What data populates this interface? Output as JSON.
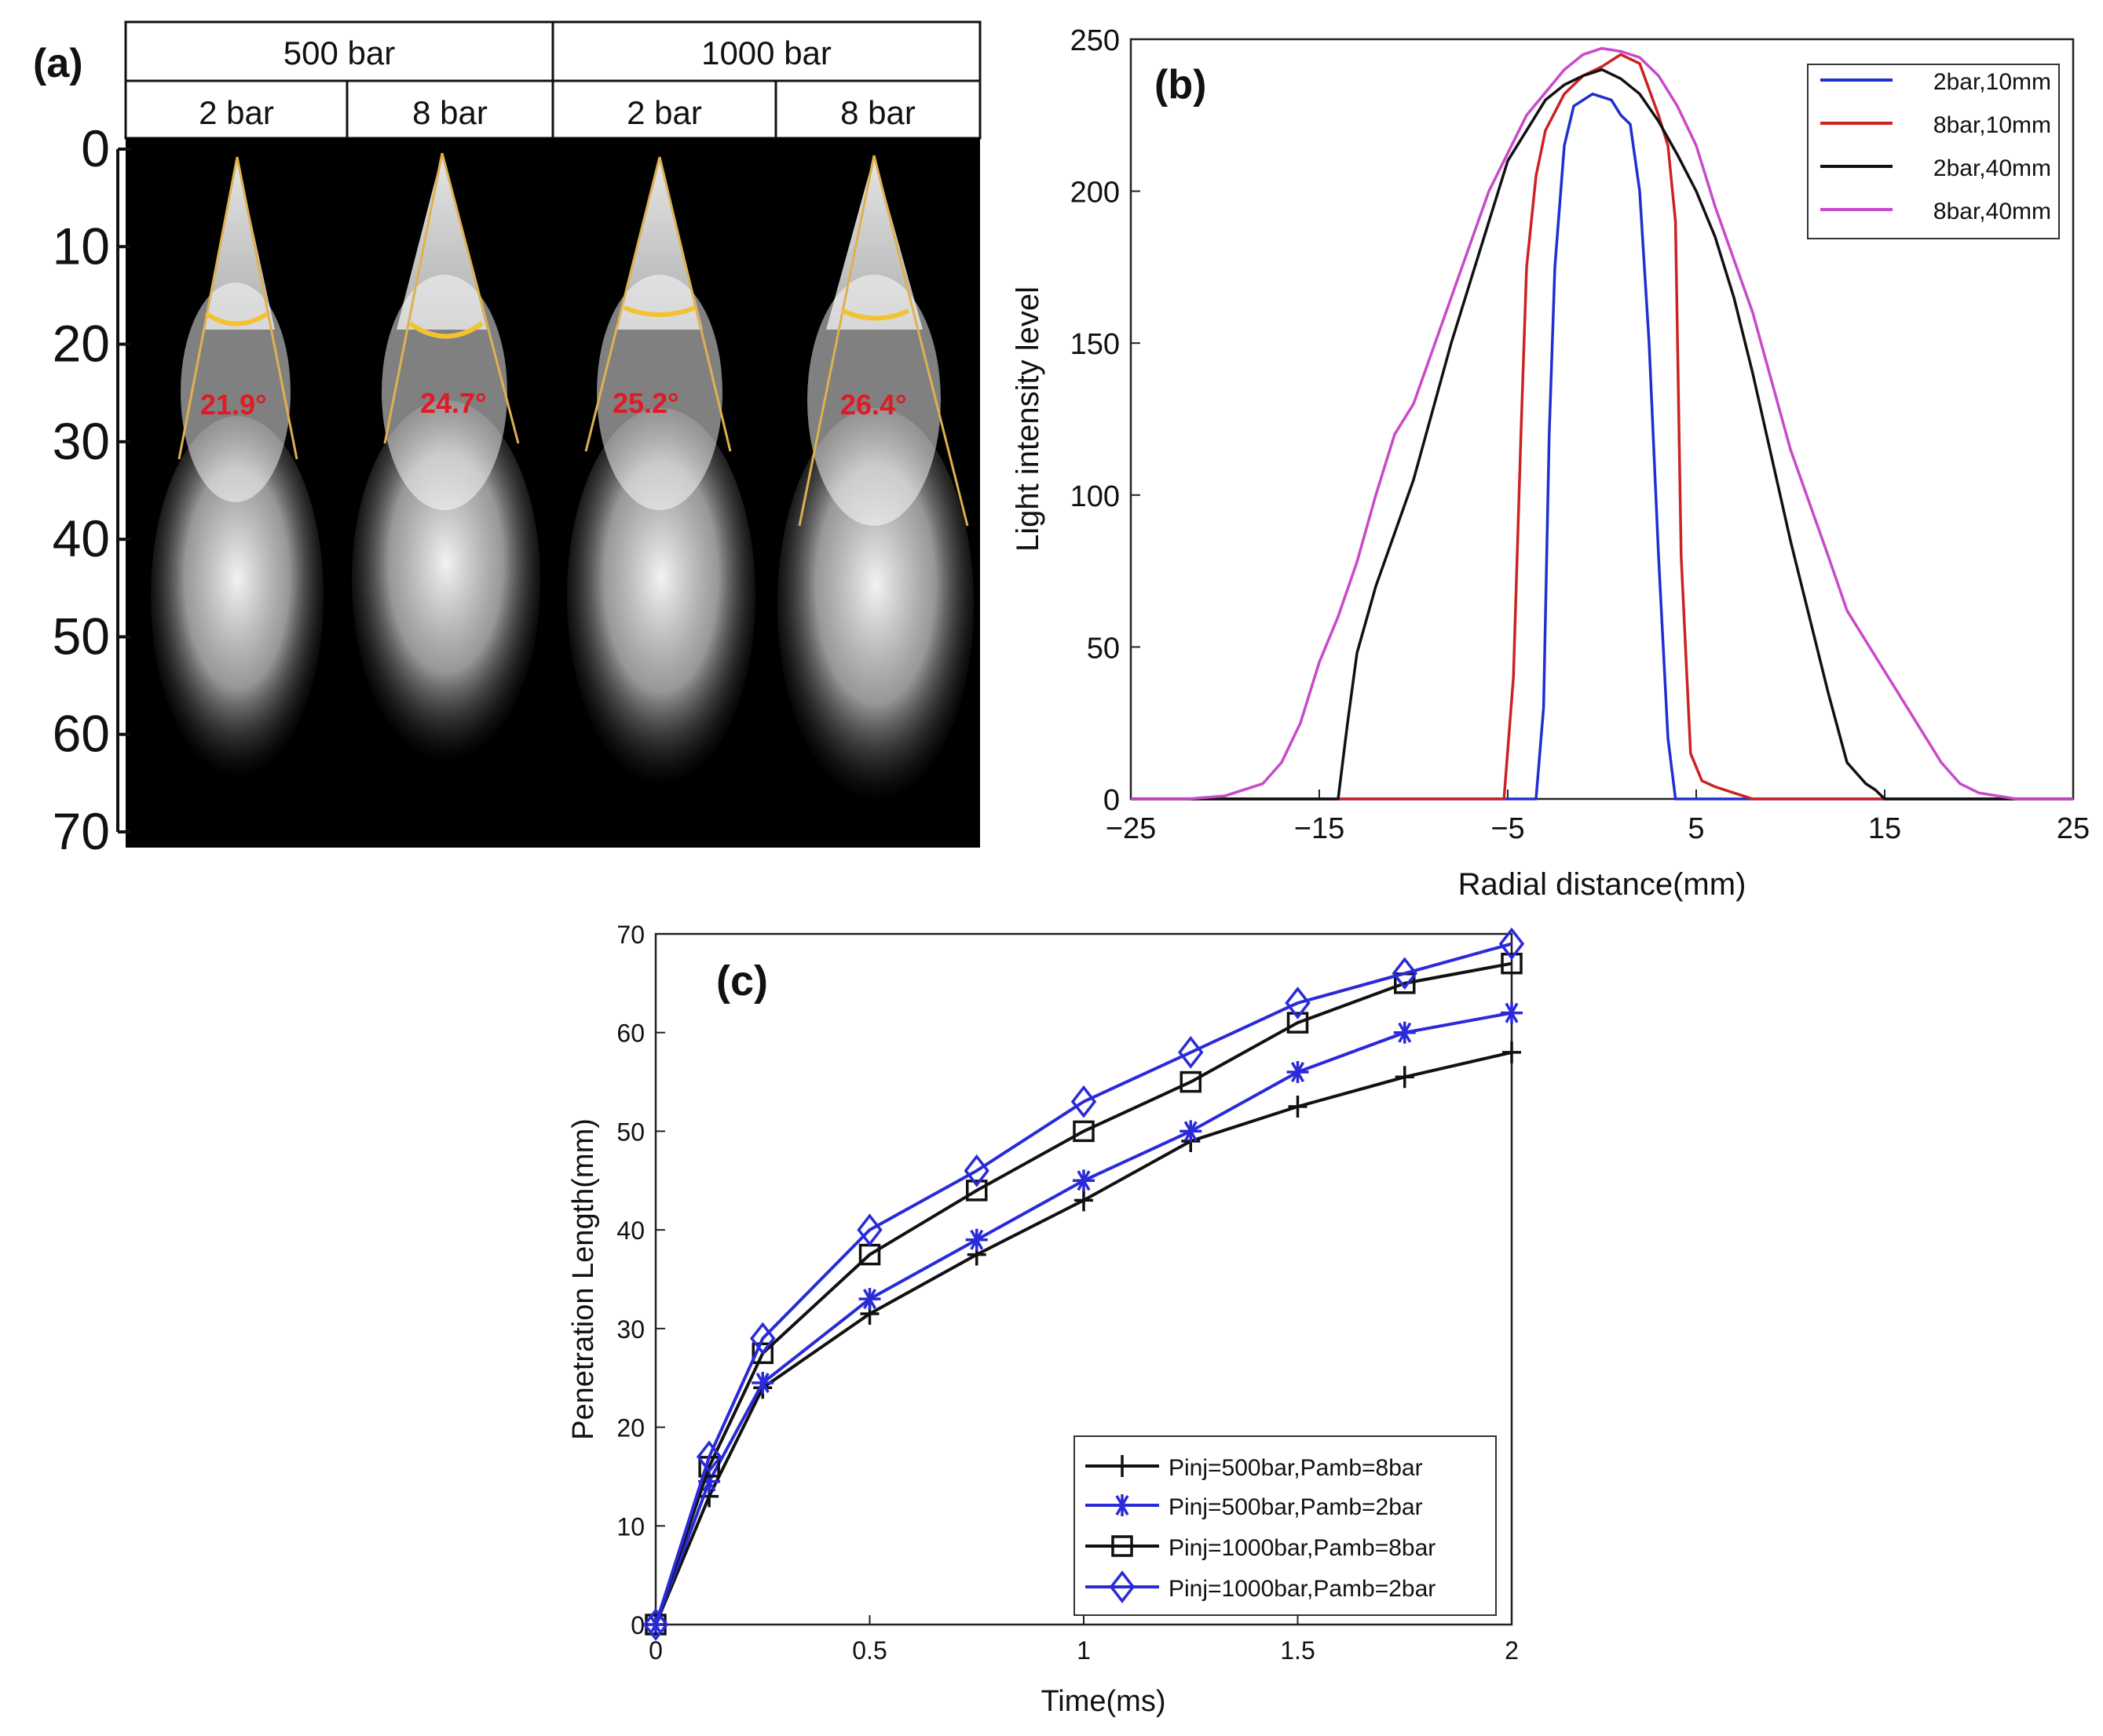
{
  "panel_a": {
    "label": "(a)",
    "header": {
      "groups": [
        {
          "label": "500 bar",
          "subs": [
            "2 bar",
            "8 bar"
          ]
        },
        {
          "label": "1000 bar",
          "subs": [
            "2 bar",
            "8 bar"
          ]
        }
      ]
    },
    "scale_ticks": [
      "0",
      "10",
      "20",
      "30",
      "40",
      "50",
      "60",
      "70"
    ],
    "scale_values": [
      0,
      10,
      20,
      30,
      40,
      50,
      60,
      70
    ],
    "angles": [
      "21.9°",
      "24.7°",
      "25.2°",
      "26.4°"
    ],
    "colors": {
      "angle_text": "#e01b24",
      "cone_line": "#e0b050",
      "arc": "#f2c230",
      "background": "#000000"
    }
  },
  "chart_data": [
    {
      "id": "b",
      "type": "line",
      "panel_label": "(b)",
      "title": "",
      "xlabel": "Radial distance(mm)",
      "ylabel": "Light intensity level",
      "xlim": [
        -25,
        25
      ],
      "ylim": [
        0,
        250
      ],
      "xticks": [
        -25,
        -15,
        -5,
        5,
        15,
        25
      ],
      "xtick_labels": [
        "−25",
        "−15",
        "−5",
        "5",
        "15",
        "25"
      ],
      "yticks": [
        0,
        50,
        100,
        150,
        200,
        250
      ],
      "ytick_labels": [
        "0",
        "50",
        "100",
        "150",
        "200",
        "250"
      ],
      "legend_position": "top-right",
      "series": [
        {
          "name": "2bar,10mm",
          "color": "#1f2fd0",
          "x": [
            -25,
            -3.5,
            -3.1,
            -2.8,
            -2.5,
            -2.0,
            -1.5,
            -0.5,
            0.5,
            1.0,
            1.5,
            2.0,
            2.5,
            3.0,
            3.5,
            3.9,
            4.2,
            25
          ],
          "y": [
            0,
            0,
            30,
            120,
            175,
            215,
            228,
            232,
            230,
            225,
            222,
            200,
            150,
            80,
            20,
            0,
            0,
            0
          ]
        },
        {
          "name": "8bar,10mm",
          "color": "#cc2222",
          "x": [
            -25,
            -5.2,
            -4.7,
            -4.3,
            -4.0,
            -3.5,
            -3.0,
            -2.0,
            -1.0,
            0.0,
            1.0,
            2.0,
            3.0,
            3.5,
            3.9,
            4.2,
            4.7,
            5.3,
            6.0,
            7.0,
            8.0,
            25
          ],
          "y": [
            0,
            0,
            40,
            120,
            175,
            205,
            220,
            232,
            238,
            241,
            245,
            242,
            225,
            215,
            190,
            80,
            15,
            6,
            4,
            2,
            0,
            0
          ]
        },
        {
          "name": "2bar,40mm",
          "color": "#111111",
          "x": [
            -25,
            -14.0,
            -13.5,
            -13.0,
            -12.0,
            -10.0,
            -8.0,
            -6.0,
            -5.0,
            -4.0,
            -3.0,
            -2.0,
            -1.0,
            0.0,
            1.0,
            2.0,
            3.0,
            4.0,
            5.0,
            6.0,
            7.0,
            8.0,
            10.0,
            12.0,
            13.0,
            14.0,
            14.5,
            15.0,
            25
          ],
          "y": [
            0,
            0,
            25,
            48,
            70,
            105,
            150,
            190,
            210,
            220,
            230,
            235,
            238,
            240,
            237,
            232,
            223,
            212,
            200,
            185,
            165,
            140,
            85,
            35,
            12,
            5,
            3,
            0,
            0
          ]
        },
        {
          "name": "8bar,40mm",
          "color": "#c84ac8",
          "x": [
            -25,
            -22,
            -20,
            -18,
            -17,
            -16,
            -15,
            -14,
            -13,
            -12,
            -11,
            -10,
            -8,
            -6,
            -4,
            -2,
            -1,
            0,
            1,
            2,
            3,
            4,
            5,
            6,
            8,
            10,
            12,
            13,
            15,
            16,
            17,
            18,
            19,
            20,
            22,
            25
          ],
          "y": [
            0,
            0,
            1,
            5,
            12,
            25,
            45,
            60,
            78,
            100,
            120,
            130,
            165,
            200,
            225,
            240,
            245,
            247,
            246,
            244,
            238,
            228,
            215,
            195,
            160,
            115,
            80,
            62,
            42,
            32,
            22,
            12,
            5,
            2,
            0,
            0
          ]
        }
      ]
    },
    {
      "id": "c",
      "type": "line",
      "panel_label": "(c)",
      "title": "",
      "xlabel": "Time(ms)",
      "ylabel": "Penetration Length(mm)",
      "xlim": [
        0,
        2
      ],
      "ylim": [
        0,
        70
      ],
      "xticks": [
        0,
        0.5,
        1,
        1.5,
        2
      ],
      "xtick_labels": [
        "0",
        "0.5",
        "1",
        "1.5",
        "2"
      ],
      "yticks": [
        0,
        10,
        20,
        30,
        40,
        50,
        60,
        70
      ],
      "ytick_labels": [
        "0",
        "10",
        "20",
        "30",
        "40",
        "50",
        "60",
        "70"
      ],
      "legend_position": "bottom-right",
      "x": [
        0,
        0.125,
        0.25,
        0.5,
        0.75,
        1.0,
        1.25,
        1.5,
        1.75,
        2.0
      ],
      "series": [
        {
          "name": "Pinj=500bar,Pamb=8bar",
          "color": "#111111",
          "marker": "plus",
          "values": [
            0,
            13,
            24,
            31.5,
            37.5,
            43,
            49,
            52.5,
            55.5,
            58
          ]
        },
        {
          "name": "Pinj=500bar,Pamb=2bar",
          "color": "#2a2ad8",
          "marker": "asterisk",
          "values": [
            0,
            14.5,
            24.5,
            33,
            39,
            45,
            50,
            56,
            60,
            62
          ]
        },
        {
          "name": "Pinj=1000bar,Pamb=8bar",
          "color": "#111111",
          "marker": "square",
          "values": [
            0,
            16,
            27.5,
            37.5,
            44,
            50,
            55,
            61,
            65,
            67
          ]
        },
        {
          "name": "Pinj=1000bar,Pamb=2bar",
          "color": "#2a2ad8",
          "marker": "diamond",
          "values": [
            0,
            17,
            29,
            40,
            46,
            53,
            58,
            63,
            66,
            69
          ]
        }
      ]
    }
  ]
}
